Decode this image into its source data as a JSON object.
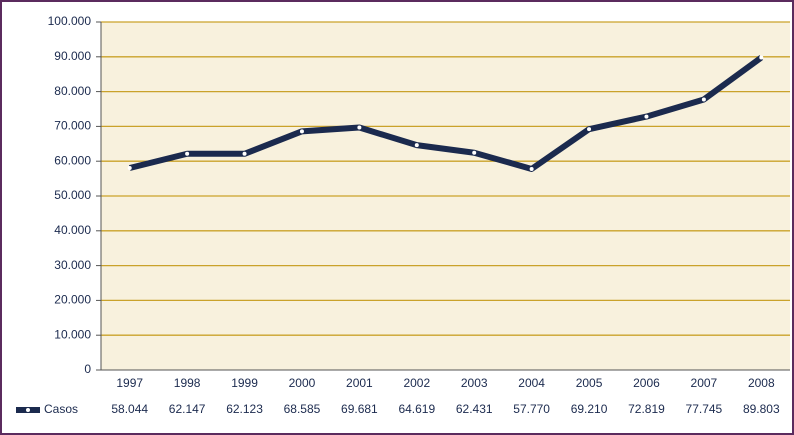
{
  "chart_data": {
    "type": "line",
    "categories": [
      "1997",
      "1998",
      "1999",
      "2000",
      "2001",
      "2002",
      "2003",
      "2004",
      "2005",
      "2006",
      "2007",
      "2008"
    ],
    "series": [
      {
        "name": "Casos",
        "color": "#1b2a4e",
        "values": [
          58044,
          62147,
          62123,
          68585,
          69681,
          64619,
          62431,
          57770,
          69210,
          72819,
          77745,
          89803
        ],
        "value_labels": [
          "58.044",
          "62.147",
          "62.123",
          "68.585",
          "69.681",
          "64.619",
          "62.431",
          "57.770",
          "69.210",
          "72.819",
          "77.745",
          "89.803"
        ]
      }
    ],
    "ylim": [
      0,
      100000
    ],
    "yticks": [
      0,
      {
        "value": 10000,
        "label": "10.000"
      },
      {
        "value": 20000,
        "label": "20.000"
      },
      {
        "value": 30000,
        "label": "30.000"
      },
      {
        "value": 40000,
        "label": "40.000"
      },
      {
        "value": 50000,
        "label": "50.000"
      },
      {
        "value": 60000,
        "label": "60.000"
      },
      {
        "value": 70000,
        "label": "70.000"
      },
      {
        "value": 80000,
        "label": "80.000"
      },
      {
        "value": 90000,
        "label": "90.000"
      },
      {
        "value": 100000,
        "label": "100.000"
      }
    ],
    "grid": true
  }
}
